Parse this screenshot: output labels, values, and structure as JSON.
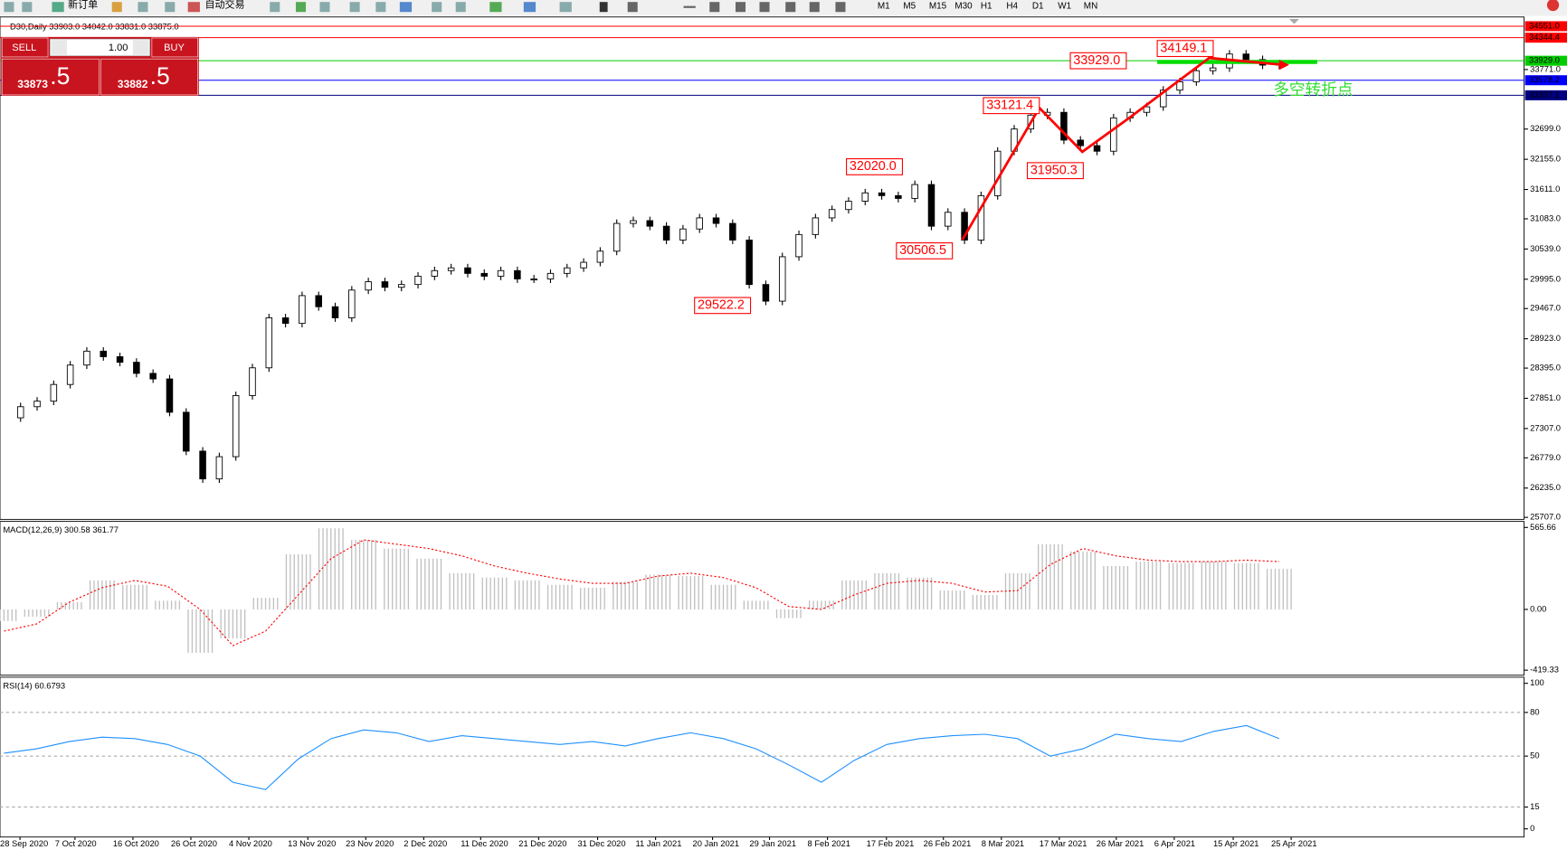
{
  "toolbar": {
    "new_order": "新订单",
    "auto_trading": "自动交易",
    "timeframes": [
      "M1",
      "M5",
      "M15",
      "M30",
      "H1",
      "H4",
      "D1",
      "W1",
      "MN"
    ]
  },
  "trade_panel": {
    "sell": "SELL",
    "buy": "BUY",
    "lots": "1.00",
    "bid_main": "33873",
    "bid_frac": ".5",
    "ask_main": "33882",
    "ask_frac": ".5"
  },
  "chart_data": [
    {
      "type": "candlestick",
      "title": "D30,Daily 33903.0 34042.0 33831.0 33875.0",
      "series": [
        {
          "name": "D30",
          "color": "#000000",
          "values": [
            27500,
            27700,
            27800,
            28100,
            28450,
            28700,
            28600,
            28500,
            28300,
            28200,
            27600,
            26900,
            26400,
            26800,
            27900,
            28400,
            29300,
            29200,
            29700,
            29500,
            29300,
            29800,
            29950,
            29850,
            29900,
            30050,
            30150,
            30200,
            30100,
            30050,
            30150,
            30000,
            30000,
            30100,
            30200,
            30300,
            30500,
            31000,
            31050,
            30950,
            30700,
            30900,
            31100,
            31000,
            30700,
            29900,
            29600,
            30400,
            30800,
            31100,
            31250,
            31400,
            31550,
            31500,
            31450,
            31700,
            30950,
            31200,
            30700,
            31500,
            32300,
            32700,
            32950,
            33000,
            32500,
            32400,
            32300,
            32900,
            33000,
            33100,
            33400,
            33550,
            33750,
            33800,
            34050,
            33950,
            33850,
            33875
          ]
        }
      ],
      "ylim": [
        25671,
        34717
      ],
      "yticks": [
        {
          "value": 33771,
          "label": "33771.0"
        },
        {
          "value": 32699,
          "label": "32699.0"
        },
        {
          "value": 32155,
          "label": "32155.0"
        },
        {
          "value": 31611,
          "label": "31611.0"
        },
        {
          "value": 31083,
          "label": "31083.0"
        },
        {
          "value": 30539,
          "label": "30539.0"
        },
        {
          "value": 29995,
          "label": "29995.0"
        },
        {
          "value": 29467,
          "label": "29467.0"
        },
        {
          "value": 28923,
          "label": "28923.0"
        },
        {
          "value": 28395,
          "label": "28395.0"
        },
        {
          "value": 27851,
          "label": "27851.0"
        },
        {
          "value": 27307,
          "label": "27307.0"
        },
        {
          "value": 26779,
          "label": "26779.0"
        },
        {
          "value": 26235,
          "label": "26235.0"
        },
        {
          "value": 25707,
          "label": "25707.0"
        }
      ],
      "levels": [
        {
          "value": 34551,
          "label": "34551.0",
          "color": "#ff0000"
        },
        {
          "value": 34344.4,
          "label": "34344.4",
          "color": "#ff0000"
        },
        {
          "value": 33929,
          "label": "33929.0",
          "color": "#00cc00"
        },
        {
          "value": 33578.2,
          "label": "33578.2",
          "color": "#0000ff"
        },
        {
          "value": 33307.1,
          "label": "33307.1",
          "color": "#000080"
        }
      ],
      "annotations": [
        {
          "value": 34149.1,
          "label": "34149.1"
        },
        {
          "value": 33929,
          "label": "33929.0"
        },
        {
          "value": 33121.4,
          "label": "33121.4"
        },
        {
          "value": 32020,
          "label": "32020.0"
        },
        {
          "value": 31950.3,
          "label": "31950.3"
        },
        {
          "value": 30506.5,
          "label": "30506.5"
        },
        {
          "value": 29522.2,
          "label": "29522.2"
        }
      ],
      "note": "多空转折点",
      "x_labels": [
        "28 Sep 2020",
        "7 Oct 2020",
        "16 Oct 2020",
        "26 Oct 2020",
        "4 Nov 2020",
        "13 Nov 2020",
        "23 Nov 2020",
        "2 Dec 2020",
        "11 Dec 2020",
        "21 Dec 2020",
        "31 Dec 2020",
        "11 Jan 2021",
        "20 Jan 2021",
        "29 Jan 2021",
        "8 Feb 2021",
        "17 Feb 2021",
        "26 Feb 2021",
        "8 Mar 2021",
        "17 Mar 2021",
        "26 Mar 2021",
        "6 Apr 2021",
        "15 Apr 2021",
        "25 Apr 2021"
      ]
    },
    {
      "type": "macd",
      "title": "MACD(12,26,9) 300.58 361.77",
      "series": [
        {
          "name": "MACD",
          "color": "#c0c0c0",
          "values": [
            -80,
            -50,
            50,
            200,
            170,
            60,
            -300,
            -200,
            80,
            380,
            560,
            480,
            420,
            350,
            250,
            220,
            200,
            170,
            150,
            190,
            240,
            230,
            170,
            60,
            -60,
            60,
            200,
            250,
            220,
            130,
            100,
            250,
            450,
            400,
            300,
            330,
            320,
            330,
            320,
            280
          ]
        },
        {
          "name": "Signal",
          "color": "#ff0000",
          "values": [
            -150,
            -100,
            50,
            150,
            200,
            160,
            0,
            -250,
            -150,
            100,
            350,
            480,
            450,
            420,
            370,
            300,
            250,
            210,
            180,
            180,
            230,
            250,
            220,
            150,
            20,
            0,
            100,
            180,
            200,
            180,
            120,
            130,
            310,
            420,
            370,
            340,
            330,
            330,
            340,
            330
          ]
        }
      ],
      "ylim": [
        -454,
        607.5
      ],
      "yticks": [
        565.66,
        {
          "value": 0,
          "label": "0.00"
        },
        -419.33
      ]
    },
    {
      "type": "line",
      "title": "RSI(14) 60.6793",
      "series": [
        {
          "name": "RSI",
          "color": "#1e90ff",
          "values": [
            52,
            55,
            60,
            63,
            62,
            58,
            50,
            32,
            27,
            48,
            62,
            68,
            66,
            60,
            64,
            62,
            60,
            58,
            60,
            57,
            62,
            66,
            62,
            55,
            44,
            32,
            47,
            58,
            62,
            64,
            65,
            62,
            50,
            55,
            65,
            62,
            60,
            67,
            71,
            62
          ]
        }
      ],
      "ylim": [
        -5.6,
        104.2
      ],
      "yticks": [
        100,
        80,
        50,
        15,
        0
      ],
      "levels": [
        80,
        50,
        15
      ]
    }
  ]
}
